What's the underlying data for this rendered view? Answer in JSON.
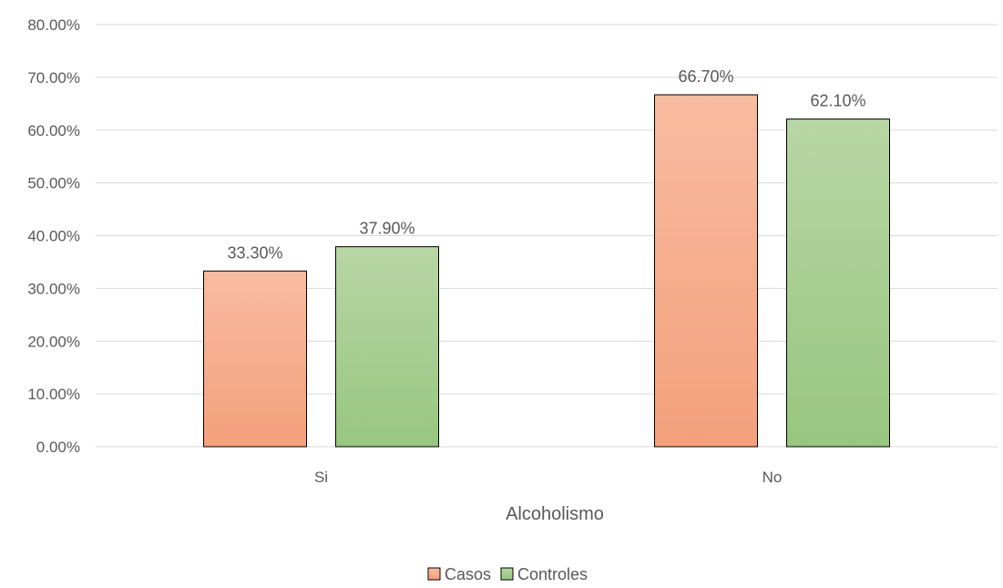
{
  "chart_data": {
    "type": "bar",
    "categories": [
      "Si",
      "No"
    ],
    "series": [
      {
        "name": "Casos",
        "values": [
          33.3,
          66.7
        ],
        "labels": [
          "33.30%",
          "66.70%"
        ],
        "color_top": "#f8bca0",
        "color_bottom": "#f4a07c"
      },
      {
        "name": "Controles",
        "values": [
          37.9,
          62.1
        ],
        "labels": [
          "37.90%",
          "62.10%"
        ],
        "color_top": "#b7d6a5",
        "color_bottom": "#98c67f"
      }
    ],
    "title": "",
    "xlabel": "Alcoholismo",
    "ylabel": "",
    "ylim": [
      0,
      80
    ],
    "yticks": [
      0,
      10,
      20,
      30,
      40,
      50,
      60,
      70,
      80
    ],
    "ytick_labels": [
      "0.00%",
      "10.00%",
      "20.00%",
      "30.00%",
      "40.00%",
      "50.00%",
      "60.00%",
      "70.00%",
      "80.00%"
    ],
    "grid": true,
    "legend_position": "bottom-center"
  }
}
